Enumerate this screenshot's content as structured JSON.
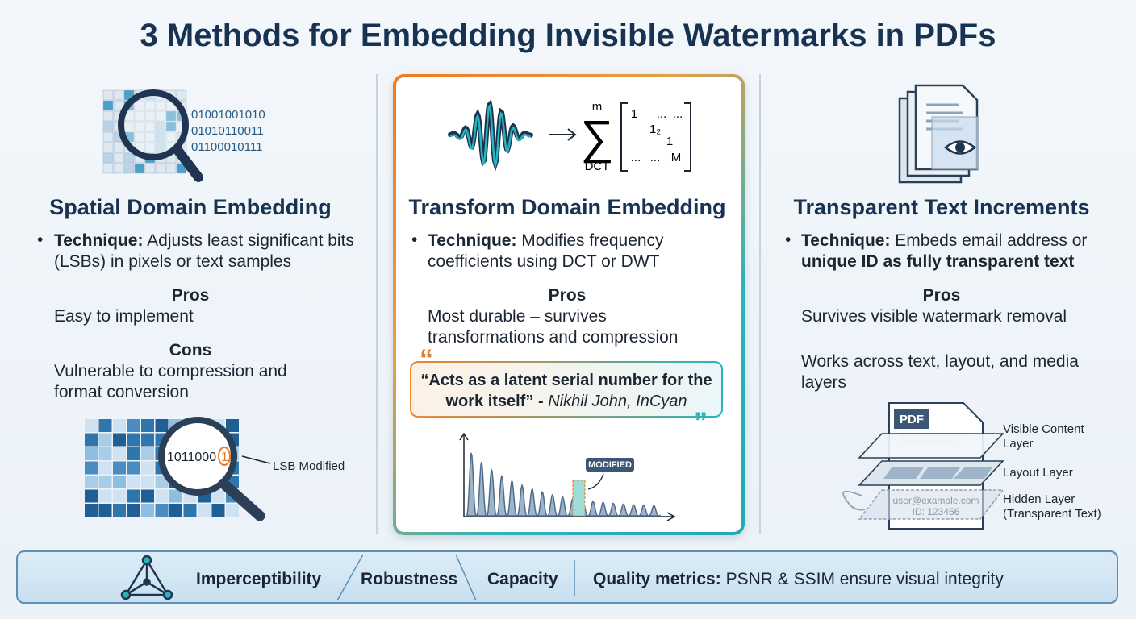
{
  "title": "3 Methods for Embedding Invisible Watermarks in PDFs",
  "columns": [
    {
      "heading": "Spatial Domain Embedding",
      "technique_label": "Technique:",
      "technique": "Adjusts least significant bits (LSBs) in pixels or text samples",
      "pros_label": "Pros",
      "pros": [
        "Easy to implement"
      ],
      "cons_label": "Cons",
      "cons": [
        "Vulnerable to compression and format conversion"
      ],
      "illustration": {
        "bits": [
          "01001001010",
          "01010110011",
          "01100010111"
        ],
        "bit_sample": "1011000",
        "bit_highlight": "1",
        "callout": "LSB Modified"
      }
    },
    {
      "heading": "Transform Domain Embedding",
      "technique_label": "Technique:",
      "technique": "Modifies frequency coefficients using DCT or DWT",
      "pros_label": "Pros",
      "pros": [
        "Most durable – survives transformations and compression"
      ],
      "quote": "“Acts as a latent serial number for the work itself”",
      "separator": "-",
      "attribution": "Nikhil John, InCyan",
      "illustration": {
        "sum_top": "m",
        "sum_bottom": "DCT",
        "matrix": [
          "1",
          "...",
          "...",
          "1₂",
          "1",
          "...",
          "...",
          "M"
        ],
        "chart_label": "MODIFIED"
      }
    },
    {
      "heading": "Transparent Text Increments",
      "technique_label": "Technique:",
      "technique": "Embeds email address or",
      "technique_bold": "unique ID as fully transparent text",
      "pros_label": "Pros",
      "pros": [
        "Survives visible watermark removal",
        "Works across text, layout, and media layers"
      ],
      "illustration": {
        "doc_label": "PDF",
        "layers": [
          "Visible Content Layer",
          "Layout Layer",
          "Hidden Layer (Transparent Text)"
        ],
        "hidden_text": [
          "user@example.com",
          "ID: 123456"
        ]
      }
    }
  ],
  "footer": {
    "items": [
      "Imperceptibility",
      "Robustness",
      "Capacity"
    ],
    "metrics_label": "Quality metrics:",
    "metrics": "PSNR & SSIM ensure visual integrity"
  }
}
